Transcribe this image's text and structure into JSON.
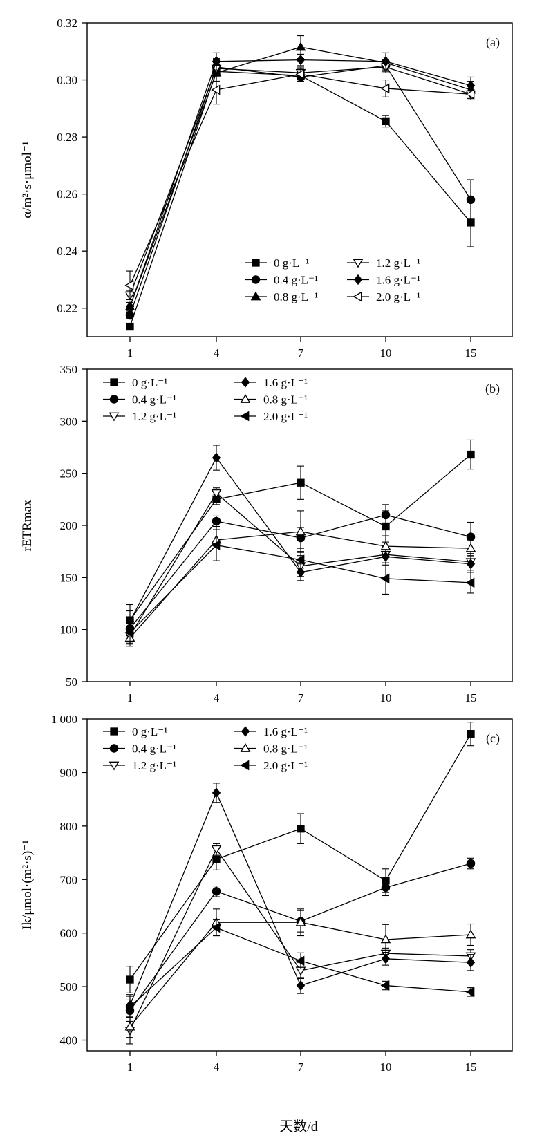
{
  "figure": {
    "x_title": "天数/d"
  },
  "chart_data": [
    {
      "type": "line",
      "panel_label": "(a)",
      "ylabel": "α/m²·s·μmol⁻¹",
      "ylim": [
        0.21,
        0.32
      ],
      "yticks": [
        "0.22",
        "0.24",
        "0.26",
        "0.28",
        "0.30",
        "0.32"
      ],
      "yticks_values": [
        0.22,
        0.24,
        0.26,
        0.28,
        0.3,
        0.32
      ],
      "x": [
        1,
        4,
        7,
        10,
        15
      ],
      "xticks": [
        "1",
        "4",
        "7",
        "10",
        "15"
      ],
      "legend_position": "bottom-right",
      "grid": false,
      "series": [
        {
          "name": "0 g·L⁻¹",
          "marker": "square",
          "values": [
            0.2135,
            0.303,
            0.3015,
            0.2855,
            0.25
          ],
          "errors": [
            0.001,
            0.003,
            0.002,
            0.002,
            0.0085
          ]
        },
        {
          "name": "0.4 g·L⁻¹",
          "marker": "circle",
          "values": [
            0.2175,
            0.3045,
            0.301,
            0.305,
            0.258
          ],
          "errors": [
            0.001,
            0.003,
            0.001,
            0.002,
            0.007
          ]
        },
        {
          "name": "0.8 g·L⁻¹",
          "marker": "triangle-up",
          "values": [
            0.2205,
            0.3025,
            0.3115,
            0.306,
            0.2965
          ],
          "errors": [
            0.0015,
            0.003,
            0.004,
            0.002,
            0.003
          ]
        },
        {
          "name": "1.2 g·L⁻¹",
          "marker": "triangle-down-open",
          "values": [
            0.2245,
            0.304,
            0.3025,
            0.3045,
            0.295
          ],
          "errors": [
            0.0015,
            0.003,
            0.002,
            0.002,
            0.002
          ]
        },
        {
          "name": "1.6 g·L⁻¹",
          "marker": "diamond",
          "values": [
            0.2205,
            0.3065,
            0.307,
            0.3065,
            0.298
          ],
          "errors": [
            0.0015,
            0.003,
            0.002,
            0.003,
            0.003
          ]
        },
        {
          "name": "2.0 g·L⁻¹",
          "marker": "triangle-left-open",
          "values": [
            0.228,
            0.2965,
            0.302,
            0.297,
            0.295
          ],
          "errors": [
            0.005,
            0.005,
            0.002,
            0.003,
            0.002
          ]
        }
      ]
    },
    {
      "type": "line",
      "panel_label": "(b)",
      "ylabel": "rETRmax",
      "ylim": [
        50,
        350
      ],
      "yticks": [
        "50",
        "100",
        "150",
        "200",
        "250",
        "300",
        "350"
      ],
      "yticks_values": [
        50,
        100,
        150,
        200,
        250,
        300,
        350
      ],
      "x": [
        1,
        4,
        7,
        10,
        15
      ],
      "xticks": [
        "1",
        "4",
        "7",
        "10",
        "15"
      ],
      "legend_position": "top-left",
      "grid": false,
      "series": [
        {
          "name": "0 g·L⁻¹",
          "marker": "square",
          "values": [
            109,
            225,
            241,
            199,
            268
          ],
          "errors": [
            15,
            5,
            16,
            15,
            14
          ]
        },
        {
          "name": "0.4 g·L⁻¹",
          "marker": "circle",
          "values": [
            101,
            204,
            188,
            210,
            189
          ],
          "errors": [
            10,
            5,
            10,
            10,
            14
          ]
        },
        {
          "name": "1.2 g·L⁻¹",
          "marker": "triangle-down-open",
          "values": [
            94,
            231,
            161,
            172,
            165
          ],
          "errors": [
            8,
            5,
            10,
            8,
            8
          ]
        },
        {
          "name": "1.6 g·L⁻¹",
          "marker": "diamond",
          "values": [
            108,
            265,
            155,
            170,
            163
          ],
          "errors": [
            10,
            12,
            8,
            8,
            8
          ]
        },
        {
          "name": "0.8 g·L⁻¹",
          "marker": "triangle-up-open",
          "values": [
            92,
            186,
            194,
            180,
            178
          ],
          "errors": [
            8,
            20,
            20,
            10,
            8
          ]
        },
        {
          "name": "2.0 g·L⁻¹",
          "marker": "triangle-left",
          "values": [
            97,
            181,
            167,
            149,
            145
          ],
          "errors": [
            10,
            15,
            8,
            15,
            10
          ]
        }
      ]
    },
    {
      "type": "line",
      "panel_label": "(c)",
      "ylabel": "Ik/μmol·(m²·s)⁻¹",
      "ylim": [
        380,
        1000
      ],
      "yticks": [
        "400",
        "500",
        "600",
        "700",
        "800",
        "900",
        "1 000"
      ],
      "yticks_values": [
        400,
        500,
        600,
        700,
        800,
        900,
        1000
      ],
      "x": [
        1,
        4,
        7,
        10,
        15
      ],
      "xticks": [
        "1",
        "4",
        "7",
        "10",
        "15"
      ],
      "legend_position": "top-left",
      "grid": false,
      "series": [
        {
          "name": "0 g·L⁻¹",
          "marker": "square",
          "values": [
            513,
            738,
            795,
            698,
            972
          ],
          "errors": [
            25,
            20,
            28,
            22,
            22
          ]
        },
        {
          "name": "0.4 g·L⁻¹",
          "marker": "circle",
          "values": [
            455,
            678,
            622,
            685,
            730
          ],
          "errors": [
            20,
            10,
            20,
            15,
            10
          ]
        },
        {
          "name": "1.2 g·L⁻¹",
          "marker": "triangle-down-open",
          "values": [
            418,
            757,
            530,
            562,
            557
          ],
          "errors": [
            25,
            10,
            15,
            10,
            12
          ]
        },
        {
          "name": "1.6 g·L⁻¹",
          "marker": "diamond",
          "values": [
            465,
            862,
            502,
            552,
            545
          ],
          "errors": [
            20,
            18,
            15,
            12,
            15
          ]
        },
        {
          "name": "0.8 g·L⁻¹",
          "marker": "triangle-up-open",
          "values": [
            425,
            620,
            620,
            588,
            597
          ],
          "errors": [
            20,
            25,
            25,
            28,
            20
          ]
        },
        {
          "name": "2.0 g·L⁻¹",
          "marker": "triangle-left",
          "values": [
            462,
            610,
            548,
            502,
            490
          ],
          "errors": [
            20,
            15,
            15,
            8,
            8
          ]
        }
      ]
    }
  ]
}
